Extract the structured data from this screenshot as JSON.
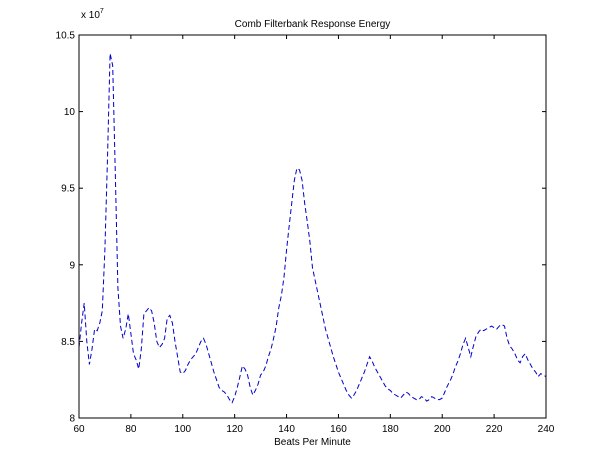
{
  "chart_data": {
    "type": "line",
    "title": "Comb Filterbank Response Energy",
    "xlabel": "Beats Per Minute",
    "ylabel": "",
    "y_exponent_label": "x 10",
    "y_exponent_power": "7",
    "xlim": [
      60,
      240
    ],
    "ylim": [
      8.0,
      10.5
    ],
    "xticks": [
      60,
      80,
      100,
      120,
      140,
      160,
      180,
      200,
      220,
      240
    ],
    "xtick_labels": [
      "60",
      "80",
      "100",
      "120",
      "140",
      "160",
      "180",
      "200",
      "220",
      "240"
    ],
    "yticks": [
      8.0,
      8.5,
      9.0,
      9.5,
      10.0,
      10.5
    ],
    "ytick_labels": [
      "8",
      "8.5",
      "9",
      "9.5",
      "10",
      "10.5"
    ],
    "grid": false,
    "line_style": "dashed",
    "series": [
      {
        "color": "#0000cc",
        "x": [
          60,
          61,
          62,
          63,
          64,
          65,
          66,
          67,
          68,
          69,
          70,
          71,
          72,
          73,
          74,
          75,
          76,
          77,
          78,
          79,
          80,
          81,
          82,
          83,
          84,
          85,
          86,
          87,
          88,
          89,
          90,
          91,
          92,
          93,
          94,
          95,
          96,
          97,
          98,
          99,
          100,
          101,
          102,
          103,
          104,
          105,
          106,
          107,
          108,
          109,
          110,
          111,
          112,
          113,
          114,
          115,
          116,
          117,
          118,
          119,
          120,
          121,
          122,
          123,
          124,
          125,
          126,
          127,
          128,
          129,
          130,
          131,
          132,
          133,
          134,
          135,
          136,
          137,
          138,
          139,
          140,
          141,
          142,
          143,
          144,
          145,
          146,
          147,
          148,
          149,
          150,
          151,
          152,
          153,
          154,
          155,
          156,
          157,
          158,
          159,
          160,
          161,
          162,
          163,
          164,
          165,
          166,
          167,
          168,
          169,
          170,
          171,
          172,
          173,
          174,
          175,
          176,
          177,
          178,
          179,
          180,
          181,
          182,
          183,
          184,
          185,
          186,
          187,
          188,
          189,
          190,
          191,
          192,
          193,
          194,
          195,
          196,
          197,
          198,
          199,
          200,
          201,
          202,
          203,
          204,
          205,
          206,
          207,
          208,
          209,
          210,
          211,
          212,
          213,
          214,
          215,
          216,
          217,
          218,
          219,
          220,
          221,
          222,
          223,
          224,
          225,
          226,
          227,
          228,
          229,
          230,
          231,
          232,
          233,
          234,
          235,
          236,
          237,
          238,
          239,
          240
        ],
        "y": [
          8.46,
          8.62,
          8.75,
          8.5,
          8.35,
          8.45,
          8.58,
          8.57,
          8.62,
          8.7,
          9.1,
          9.7,
          10.38,
          10.3,
          9.6,
          8.85,
          8.6,
          8.52,
          8.58,
          8.68,
          8.55,
          8.42,
          8.38,
          8.32,
          8.45,
          8.68,
          8.7,
          8.72,
          8.7,
          8.62,
          8.5,
          8.46,
          8.48,
          8.52,
          8.65,
          8.67,
          8.62,
          8.5,
          8.4,
          8.3,
          8.29,
          8.31,
          8.35,
          8.38,
          8.4,
          8.42,
          8.46,
          8.5,
          8.52,
          8.48,
          8.42,
          8.36,
          8.3,
          8.25,
          8.2,
          8.18,
          8.17,
          8.15,
          8.12,
          8.1,
          8.14,
          8.2,
          8.27,
          8.34,
          8.32,
          8.28,
          8.2,
          8.15,
          8.18,
          8.22,
          8.28,
          8.3,
          8.34,
          8.4,
          8.45,
          8.52,
          8.6,
          8.72,
          8.8,
          8.92,
          9.1,
          9.25,
          9.4,
          9.55,
          9.63,
          9.62,
          9.55,
          9.4,
          9.28,
          9.15,
          8.98,
          8.9,
          8.82,
          8.74,
          8.66,
          8.58,
          8.52,
          8.46,
          8.4,
          8.35,
          8.3,
          8.26,
          8.22,
          8.18,
          8.15,
          8.13,
          8.15,
          8.18,
          8.22,
          8.26,
          8.3,
          8.35,
          8.4,
          8.37,
          8.33,
          8.3,
          8.27,
          8.24,
          8.21,
          8.19,
          8.18,
          8.16,
          8.15,
          8.14,
          8.13,
          8.15,
          8.17,
          8.16,
          8.14,
          8.13,
          8.12,
          8.12,
          8.14,
          8.13,
          8.11,
          8.12,
          8.14,
          8.13,
          8.12,
          8.12,
          8.13,
          8.17,
          8.21,
          8.24,
          8.28,
          8.33,
          8.37,
          8.42,
          8.48,
          8.52,
          8.46,
          8.4,
          8.47,
          8.53,
          8.56,
          8.58,
          8.57,
          8.58,
          8.59,
          8.6,
          8.59,
          8.58,
          8.6,
          8.61,
          8.6,
          8.52,
          8.47,
          8.45,
          8.42,
          8.38,
          8.36,
          8.4,
          8.42,
          8.38,
          8.35,
          8.32,
          8.3,
          8.27,
          8.29,
          8.28,
          8.27
        ]
      }
    ]
  }
}
